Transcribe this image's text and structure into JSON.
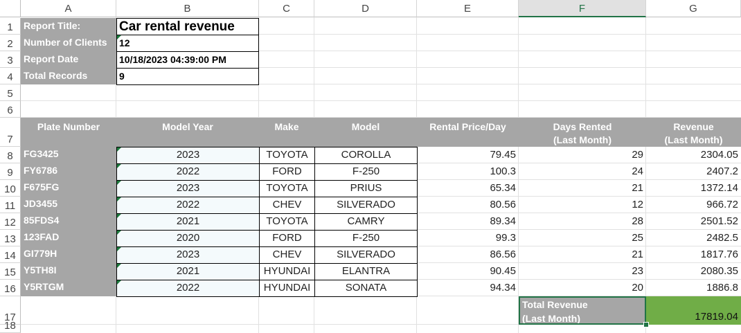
{
  "columns": [
    "A",
    "B",
    "C",
    "D",
    "E",
    "F",
    "G"
  ],
  "rows": [
    "1",
    "2",
    "3",
    "4",
    "5",
    "6",
    "7",
    "8",
    "9",
    "10",
    "11",
    "12",
    "13",
    "14",
    "15",
    "16",
    "17",
    "18"
  ],
  "info": [
    {
      "label": "Report Title:",
      "value": "Car rental revenue"
    },
    {
      "label": "Number of Clients",
      "value": "12"
    },
    {
      "label": "Report Date",
      "value": "10/18/2023  04:39:00 PM"
    },
    {
      "label": "Total Records",
      "value": "9"
    }
  ],
  "table_headers": {
    "plate": "Plate Number",
    "year": "Model Year",
    "make": "Make",
    "model": "Model",
    "price": "Rental Price/Day",
    "days_line1": "Days Rented",
    "days_line2": "(Last Month)",
    "rev_line1": "Revenue",
    "rev_line2": "(Last Month)"
  },
  "records": [
    {
      "plate": "FG3425",
      "year": "2023",
      "make": "TOYOTA",
      "model": "COROLLA",
      "price": "79.45",
      "days": "29",
      "revenue": "2304.05"
    },
    {
      "plate": "FY6786",
      "year": "2022",
      "make": "FORD",
      "model": "F-250",
      "price": "100.3",
      "days": "24",
      "revenue": "2407.2"
    },
    {
      "plate": "F675FG",
      "year": "2023",
      "make": "TOYOTA",
      "model": "PRIUS",
      "price": "65.34",
      "days": "21",
      "revenue": "1372.14"
    },
    {
      "plate": "JD3455",
      "year": "2022",
      "make": "CHEV",
      "model": "SILVERADO",
      "price": "80.56",
      "days": "12",
      "revenue": "966.72"
    },
    {
      "plate": "85FDS4",
      "year": "2021",
      "make": "TOYOTA",
      "model": "CAMRY",
      "price": "89.34",
      "days": "28",
      "revenue": "2501.52"
    },
    {
      "plate": "123FAD",
      "year": "2020",
      "make": "FORD",
      "model": "F-250",
      "price": "99.3",
      "days": "25",
      "revenue": "2482.5"
    },
    {
      "plate": "GI779H",
      "year": "2023",
      "make": "CHEV",
      "model": "SILVERADO",
      "price": "86.56",
      "days": "21",
      "revenue": "1817.76"
    },
    {
      "plate": "Y5TH8I",
      "year": "2021",
      "make": "HYUNDAI",
      "model": "ELANTRA",
      "price": "90.45",
      "days": "23",
      "revenue": "2080.35"
    },
    {
      "plate": "Y5RTGM",
      "year": "2022",
      "make": "HYUNDAI",
      "model": "SONATA",
      "price": "94.34",
      "days": "20",
      "revenue": "1886.8"
    }
  ],
  "total": {
    "label_line1": "Total Revenue",
    "label_line2": "(Last Month)",
    "value": "17819.04"
  },
  "selected_column": "F",
  "colors": {
    "header_gray": "#a6a6a6",
    "total_green": "#70ad47",
    "select_green": "#217346"
  }
}
